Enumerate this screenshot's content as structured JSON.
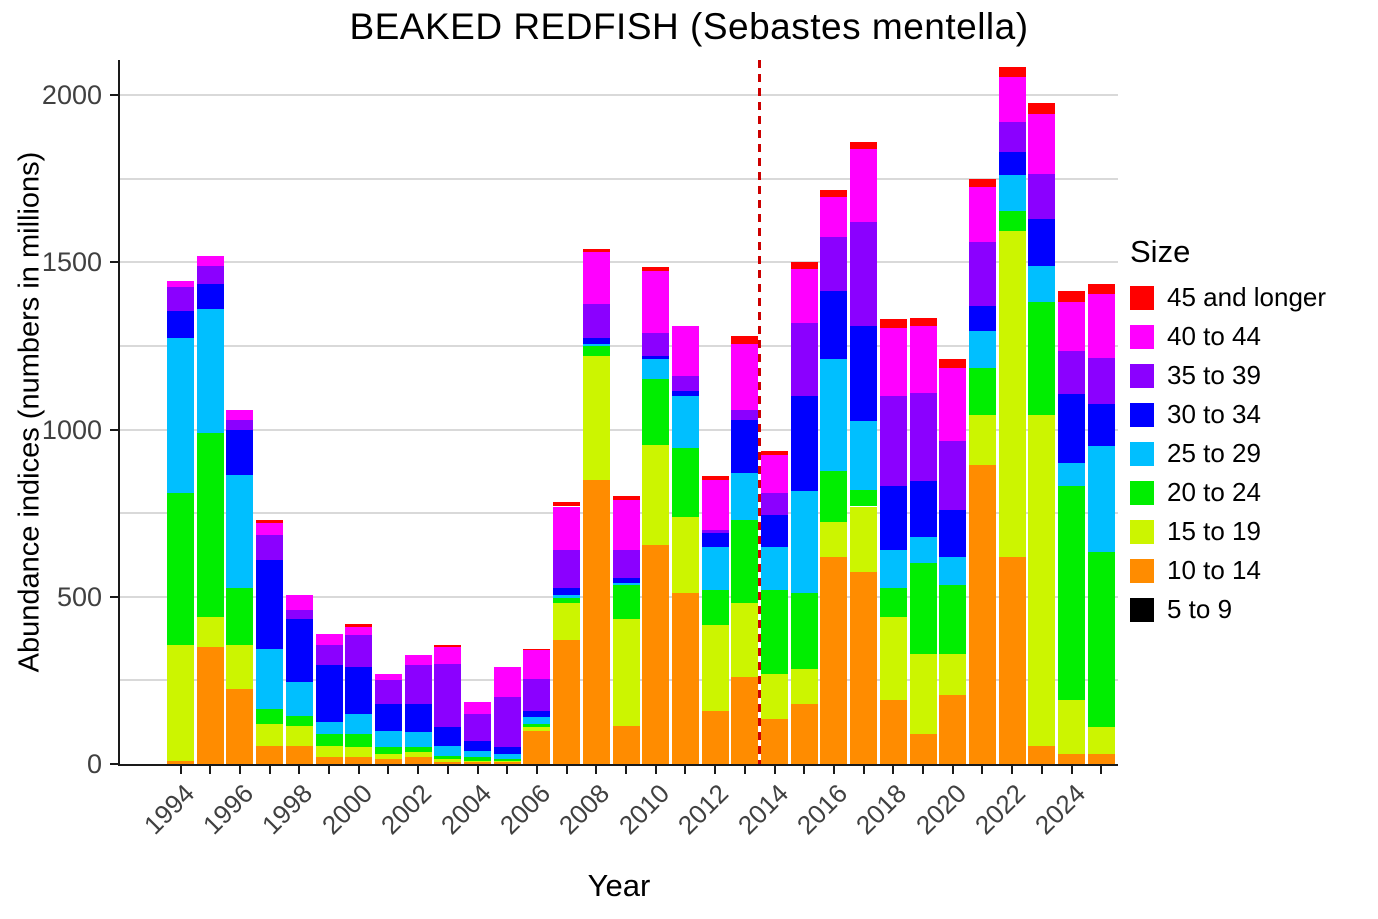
{
  "chart_data": {
    "type": "bar",
    "stacked": true,
    "title": "BEAKED REDFISH (Sebastes mentella)",
    "xlabel": "Year",
    "ylabel": "Abundance indices (numbers in millions)",
    "legend_title": "Size",
    "legend_position": "right",
    "ylim": [
      0,
      2105
    ],
    "yticks": [
      0,
      500,
      1000,
      1500,
      2000
    ],
    "gridline_step": 250,
    "x_label_every": 2,
    "grid": true,
    "categories": [
      1994,
      1995,
      1996,
      1997,
      1998,
      1999,
      2000,
      2001,
      2002,
      2003,
      2004,
      2005,
      2006,
      2007,
      2008,
      2009,
      2010,
      2011,
      2012,
      2013,
      2014,
      2015,
      2016,
      2017,
      2018,
      2019,
      2020,
      2021,
      2022,
      2023,
      2024,
      2025
    ],
    "reference_line": {
      "x": 2013.5,
      "color": "#cc0000",
      "style": "dashed"
    },
    "series": [
      {
        "name": "5 to 9",
        "color": "#000000",
        "values": [
          0,
          0,
          0,
          0,
          0,
          0,
          0,
          0,
          0,
          0,
          0,
          0,
          0,
          0,
          0,
          0,
          0,
          0,
          0,
          0,
          0,
          0,
          0,
          0,
          0,
          0,
          0,
          0,
          0,
          0,
          0,
          0
        ]
      },
      {
        "name": "10 to 14",
        "color": "#ff8c00",
        "values": [
          10,
          350,
          225,
          55,
          55,
          20,
          20,
          15,
          20,
          5,
          5,
          5,
          100,
          370,
          850,
          115,
          655,
          510,
          160,
          260,
          135,
          180,
          620,
          575,
          190,
          90,
          205,
          895,
          620,
          55,
          30,
          30
        ]
      },
      {
        "name": "15 to 19",
        "color": "#ccf500",
        "values": [
          345,
          90,
          130,
          65,
          60,
          35,
          30,
          15,
          15,
          10,
          5,
          5,
          10,
          110,
          370,
          320,
          300,
          230,
          255,
          220,
          135,
          105,
          105,
          195,
          250,
          240,
          125,
          150,
          975,
          990,
          160,
          80
        ]
      },
      {
        "name": "20 to 24",
        "color": "#00ee00",
        "values": [
          455,
          550,
          170,
          45,
          30,
          35,
          40,
          20,
          15,
          10,
          10,
          5,
          10,
          15,
          30,
          100,
          195,
          205,
          105,
          250,
          250,
          225,
          150,
          50,
          85,
          270,
          205,
          140,
          60,
          335,
          640,
          525
        ]
      },
      {
        "name": "25 to 29",
        "color": "#00bfff",
        "values": [
          465,
          370,
          340,
          180,
          100,
          35,
          60,
          50,
          45,
          30,
          20,
          15,
          20,
          10,
          5,
          5,
          60,
          155,
          130,
          140,
          130,
          305,
          335,
          205,
          115,
          80,
          85,
          110,
          105,
          110,
          70,
          315
        ]
      },
      {
        "name": "30 to 34",
        "color": "#0000ff",
        "values": [
          80,
          75,
          135,
          265,
          190,
          170,
          140,
          80,
          85,
          55,
          30,
          20,
          20,
          20,
          20,
          15,
          10,
          15,
          40,
          160,
          95,
          285,
          205,
          285,
          190,
          165,
          140,
          75,
          70,
          140,
          205,
          125
        ]
      },
      {
        "name": "35 to 39",
        "color": "#8b00ff",
        "values": [
          70,
          55,
          30,
          75,
          25,
          60,
          95,
          70,
          115,
          190,
          80,
          150,
          95,
          115,
          100,
          85,
          70,
          45,
          10,
          30,
          65,
          220,
          160,
          310,
          270,
          265,
          205,
          190,
          90,
          135,
          130,
          140
        ]
      },
      {
        "name": "40 to 44",
        "color": "#ff00ff",
        "values": [
          20,
          30,
          30,
          35,
          45,
          35,
          25,
          20,
          30,
          50,
          35,
          90,
          85,
          130,
          155,
          150,
          185,
          150,
          150,
          195,
          115,
          160,
          120,
          220,
          205,
          200,
          220,
          165,
          135,
          180,
          145,
          190
        ]
      },
      {
        "name": "45 and longer",
        "color": "#ff0000",
        "values": [
          0,
          0,
          0,
          10,
          0,
          0,
          10,
          0,
          0,
          5,
          0,
          0,
          5,
          12,
          10,
          10,
          10,
          0,
          10,
          25,
          10,
          20,
          20,
          20,
          25,
          25,
          25,
          25,
          30,
          30,
          35,
          30
        ]
      }
    ]
  }
}
